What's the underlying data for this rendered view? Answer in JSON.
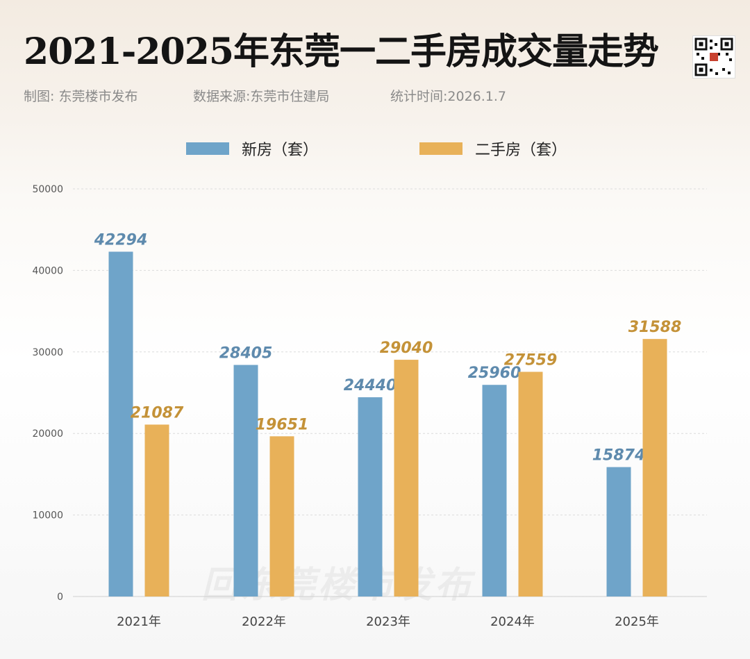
{
  "header": {
    "title": "2021-2025年东莞一二手房成交量走势",
    "credit": "制图: 东莞楼市发布",
    "source": "数据来源:东莞市住建局",
    "time": "统计时间:2026.1.7"
  },
  "qr_icon": "qr-code-icon",
  "watermark": "回东莞楼市发布",
  "colors": {
    "new": "#6fa4c9",
    "second": "#e8b159",
    "new_label": "#5e8aad",
    "second_label": "#c49238"
  },
  "chart_data": {
    "type": "bar",
    "title": "2021-2025年东莞一二手房成交量走势",
    "categories": [
      "2021年",
      "2022年",
      "2023年",
      "2024年",
      "2025年"
    ],
    "series": [
      {
        "name": "新房（套）",
        "values": [
          42294,
          28405,
          24440,
          25960,
          15874
        ]
      },
      {
        "name": "二手房（套）",
        "values": [
          21087,
          19651,
          29040,
          27559,
          31588
        ]
      }
    ],
    "yticks": [
      "0",
      "10000",
      "20000",
      "30000",
      "40000",
      "50000"
    ],
    "ylim": [
      0,
      50000
    ],
    "grid": true,
    "legend": "top-center",
    "xlabel": "",
    "ylabel": ""
  }
}
